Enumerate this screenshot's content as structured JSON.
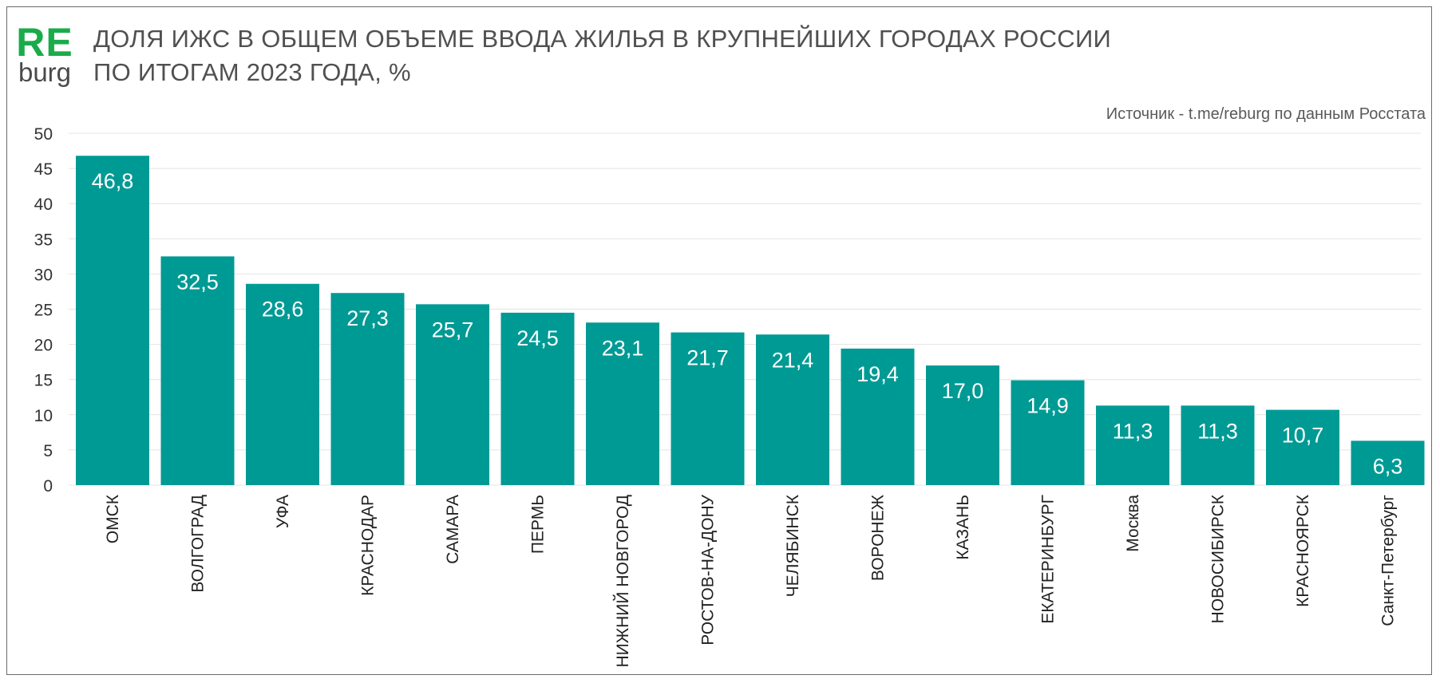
{
  "logo": {
    "top": "RE",
    "bottom": "burg"
  },
  "title_lines": [
    "ДОЛЯ ИЖС В ОБЩЕМ ОБЪЕМЕ ВВОДА ЖИЛЬЯ В КРУПНЕЙШИХ ГОРОДАХ РОССИИ",
    "ПО ИТОГАМ 2023 ГОДА, %"
  ],
  "source": "Источник - t.me/reburg по данным Росстата",
  "colors": {
    "bar": "#009a94",
    "logo": "#1aab4b",
    "label": "#ffffff",
    "text": "#333333"
  },
  "chart_data": {
    "type": "bar",
    "title": "ДОЛЯ ИЖС В ОБЩЕМ ОБЪЕМЕ ВВОДА ЖИЛЬЯ В КРУПНЕЙШИХ ГОРОДАХ РОССИИ ПО ИТОГАМ 2023 ГОДА, %",
    "categories": [
      "ОМСК",
      "ВОЛГОГРАД",
      "УФА",
      "КРАСНОДАР",
      "САМАРА",
      "ПЕРМЬ",
      "НИЖНИЙ НОВГОРОД",
      "РОСТОВ-НА-ДОНУ",
      "ЧЕЛЯБИНСК",
      "ВОРОНЕЖ",
      "КАЗАНЬ",
      "ЕКАТЕРИНБУРГ",
      "Москва",
      "НОВОСИБИРСК",
      "КРАСНОЯРСК",
      "Санкт-Петербург"
    ],
    "values": [
      46.8,
      32.5,
      28.6,
      27.3,
      25.7,
      24.5,
      23.1,
      21.7,
      21.4,
      19.4,
      17.0,
      14.9,
      11.3,
      11.3,
      10.7,
      6.3
    ],
    "value_labels": [
      "46,8",
      "32,5",
      "28,6",
      "27,3",
      "25,7",
      "24,5",
      "23,1",
      "21,7",
      "21,4",
      "19,4",
      "17,0",
      "14,9",
      "11,3",
      "11,3",
      "10,7",
      "6,3"
    ],
    "ylim": [
      0,
      50
    ],
    "yticks": [
      "0",
      "5",
      "10",
      "15",
      "20",
      "25",
      "30",
      "35",
      "40",
      "45",
      "50"
    ],
    "grid": true,
    "xlabel": "",
    "ylabel": ""
  }
}
